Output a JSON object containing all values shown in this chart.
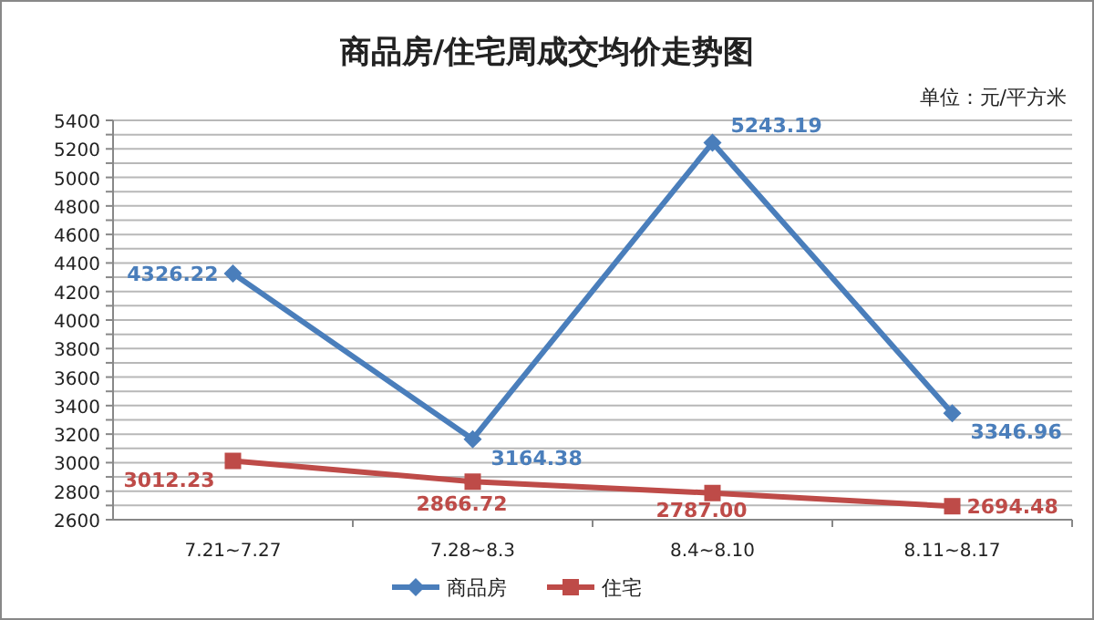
{
  "chart_data": {
    "type": "line",
    "title": "商品房/住宅周成交均价走势图",
    "subtitle": "单位：元/平方米",
    "categories": [
      "7.21~7.27",
      "7.28~8.3",
      "8.4~8.10",
      "8.11~8.17"
    ],
    "series": [
      {
        "name": "商品房",
        "color": "#4a7ebb",
        "marker": "diamond",
        "values": [
          4326.22,
          3164.38,
          5243.19,
          3346.96
        ],
        "value_labels": [
          "4326.22",
          "3164.38",
          "5243.19",
          "3346.96"
        ]
      },
      {
        "name": "住宅",
        "color": "#be4b48",
        "marker": "square",
        "values": [
          3012.23,
          2866.72,
          2787,
          2694.48
        ],
        "value_labels": [
          "3012.23",
          "2866.72",
          "2787.00",
          "2694.48"
        ]
      }
    ],
    "ylim": [
      2600,
      5400
    ],
    "yticks": [
      2600,
      {
        "value": 2700,
        "label": null
      },
      2800,
      {
        "value": 2900,
        "label": null
      },
      3000,
      {
        "value": 3100,
        "label": null
      },
      3200,
      {
        "value": 3300,
        "label": null
      },
      3400,
      {
        "value": 3500,
        "label": null
      },
      3600,
      {
        "value": 3700,
        "label": null
      },
      3800,
      {
        "value": 3900,
        "label": null
      },
      4000,
      {
        "value": 4100,
        "label": null
      },
      4200,
      {
        "value": 4300,
        "label": null
      },
      4400,
      {
        "value": 4500,
        "label": null
      },
      4600,
      {
        "value": 4700,
        "label": null
      },
      4800,
      {
        "value": 4900,
        "label": null
      },
      5000,
      {
        "value": 5100,
        "label": null
      },
      5200,
      {
        "value": 5300,
        "label": null
      },
      5400
    ],
    "grid": "y",
    "legend": "bottom",
    "line_style": "solid"
  }
}
